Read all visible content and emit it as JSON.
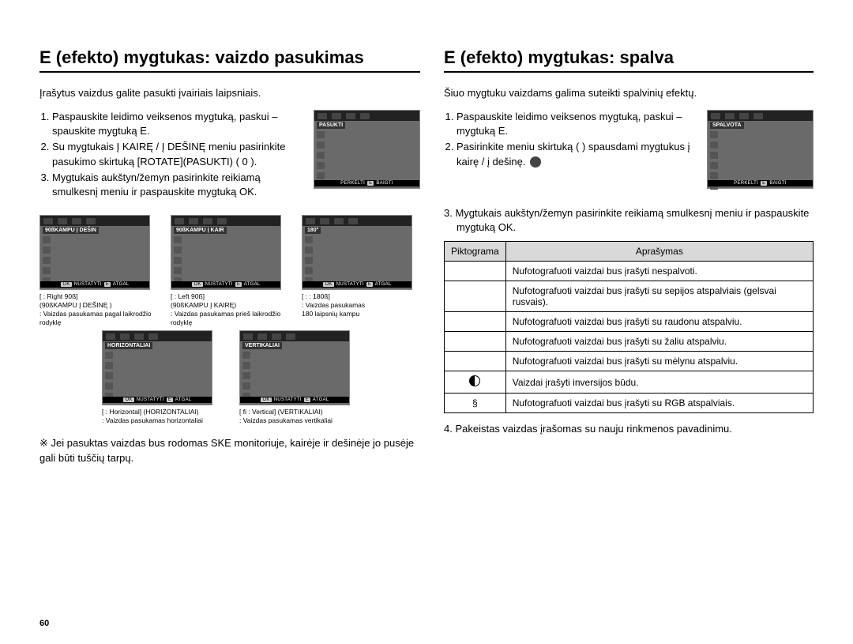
{
  "page_number": "60",
  "left": {
    "title": "E (efekto) mygtukas: vaizdo pasukimas",
    "intro": "Įrašytus vaizdus galite pasukti įvairiais laipsniais.",
    "steps": [
      "Paspauskite leidimo veiksenos mygtuką, paskui – spauskite mygtuką E.",
      "Su mygtukais Į KAIRĘ / Į DEŠINĘ meniu pasirinkite pasukimo skirtuką [ROTATE](PASUKTI) (  0  ).",
      "Mygtukais aukštyn/žemyn pasirinkite reikiamą smulkesnį meniu ir paspauskite mygtuką OK."
    ],
    "screen_label": "PASUKTI",
    "screen_footer_move": "PERKELTI",
    "screen_footer_e": "E",
    "screen_footer_exit": "BAIGTI",
    "thumbs": [
      {
        "label": "90ßKAMPU Į DEŠIN",
        "footer_ok": "OK",
        "footer_set": "NUSTATYTI",
        "footer_e": "E",
        "footer_back": "ATGAL",
        "cap1": "[     : Right 90ß]",
        "cap2": "(90ßKAMPU Į DEŠINĘ )",
        "cap3": ": Vaizdas pasukamas pagal laikrodžio rodyklę"
      },
      {
        "label": "90ßKAMPU Į KAIR",
        "footer_ok": "OK",
        "footer_set": "NUSTATYTI",
        "footer_e": "E",
        "footer_back": "ATGAL",
        "cap1": "[     : Left 90ß]",
        "cap2": "(90ßKAMPU Į KAIRĘ)",
        "cap3": ": Vaizdas pasukamas prieš laikrodžio rodyklę"
      },
      {
        "label": "180°",
        "footer_ok": "OK",
        "footer_set": "NUSTATYTI",
        "footer_e": "E",
        "footer_back": "ATGAL",
        "cap1": "[ : : 180ß]",
        "cap2": ": Vaizdas pasukamas",
        "cap3": "  180 laipsnių kampu"
      },
      {
        "label": "HORIZONTALIAI",
        "footer_ok": "OK",
        "footer_set": "NUSTATYTI",
        "footer_e": "E",
        "footer_back": "ATGAL",
        "cap1": "[     : Horizontal] (HORIZONTALIAI)",
        "cap2": ": Vaizdas pasukamas horizontaliai",
        "cap3": ""
      },
      {
        "label": "VERTIKALIAI",
        "footer_ok": "OK",
        "footer_set": "NUSTATYTI",
        "footer_e": "E",
        "footer_back": "ATGAL",
        "cap1": "[  fi  : Vertical] (VERTIKALIAI)",
        "cap2": ": Vaizdas pasukamas vertikaliai",
        "cap3": ""
      }
    ],
    "note": "※ Jei pasuktas vaizdas bus rodomas SKE monitoriuje, kairėje ir dešinėje jo pusėje gali būti tuščių tarpų."
  },
  "right": {
    "title": "E (efekto) mygtukas: spalva",
    "intro": "Šiuo mygtuku vaizdams galima suteikti spalvinių efektų.",
    "steps": [
      "Paspauskite leidimo veiksenos mygtuką, paskui – mygtuką E.",
      "Pasirinkite meniu skirtuką (       ) spausdami mygtukus į kairę / į dešinę."
    ],
    "screen_label": "SPALVOTA",
    "screen_footer_move": "PERKELTI",
    "screen_footer_e": "E",
    "screen_footer_exit": "BAIGTI",
    "step3": "3. Mygtukais aukštyn/žemyn pasirinkite reikiamą smulkesnį meniu ir paspauskite mygtuką OK.",
    "table": {
      "head_icon": "Piktograma",
      "head_desc": "Aprašymas",
      "rows": [
        {
          "icon": "",
          "desc": "Nufotografuoti vaizdai bus įrašyti nespalvoti."
        },
        {
          "icon": "",
          "desc": "Nufotografuoti vaizdai bus įrašyti su sepijos atspalviais (gelsvai rusvais)."
        },
        {
          "icon": "",
          "desc": "Nufotografuoti vaizdai bus įrašyti su raudonu atspalviu."
        },
        {
          "icon": "",
          "desc": "Nufotografuoti vaizdai bus įrašyti su žaliu atspalviu."
        },
        {
          "icon": "",
          "desc": "Nufotografuoti vaizdai bus įrašyti su mėlynu atspalviu."
        },
        {
          "icon": "neg",
          "desc": "Vaizdai įrašyti inversijos būdu."
        },
        {
          "icon": "§",
          "desc": "Nufotografuoti vaizdai bus įrašyti su RGB atspalviais."
        }
      ]
    },
    "step4": "4. Pakeistas vaizdas įrašomas su nauju rinkmenos pavadinimu."
  }
}
